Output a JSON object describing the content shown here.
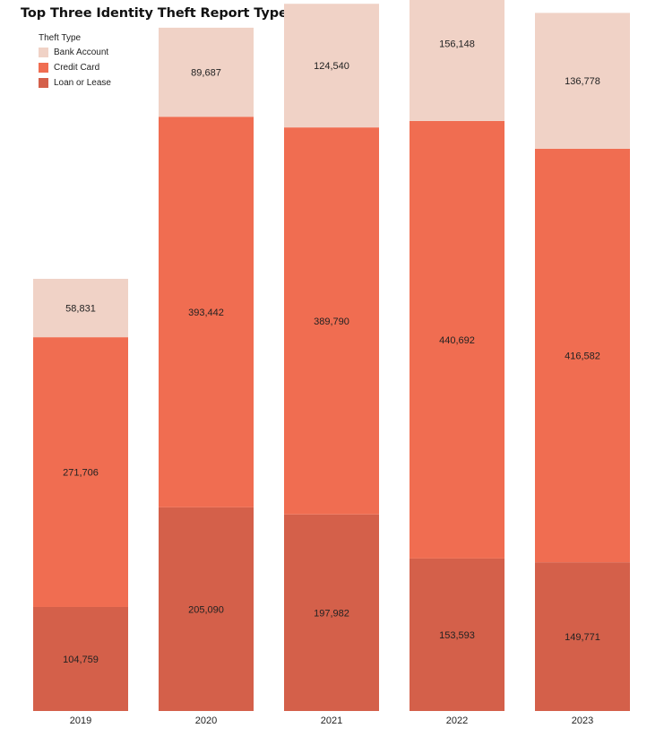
{
  "chart_data": {
    "type": "bar",
    "stacked": true,
    "title": "Top Three Identity Theft Report Types by Year",
    "xlabel": "",
    "ylabel": "",
    "grid": false,
    "legend": {
      "title": "Theft Type",
      "placement": "top-left",
      "entries": [
        "Bank Account",
        "Credit Card",
        "Loan or Lease"
      ]
    },
    "categories": [
      "2019",
      "2020",
      "2021",
      "2022",
      "2023"
    ],
    "series": [
      {
        "name": "Loan or Lease",
        "color": "#d4604a",
        "values": [
          104759,
          205090,
          197982,
          153593,
          149771
        ],
        "labels": [
          "104,759",
          "205,090",
          "197,982",
          "153,593",
          "149,771"
        ]
      },
      {
        "name": "Credit Card",
        "color": "#f06d51",
        "values": [
          271706,
          393442,
          389790,
          440692,
          416582
        ],
        "labels": [
          "271,706",
          "393,442",
          "389,790",
          "440,692",
          "416,582"
        ]
      },
      {
        "name": "Bank Account",
        "color": "#f0d2c6",
        "values": [
          58831,
          89687,
          124540,
          156148,
          136778
        ],
        "labels": [
          "58,831",
          "89,687",
          "124,540",
          "156,148",
          "136,778"
        ]
      }
    ]
  }
}
